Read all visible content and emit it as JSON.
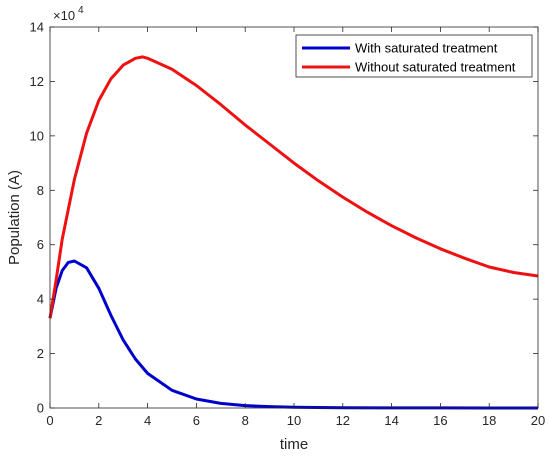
{
  "chart_data": {
    "type": "line",
    "xlabel": "time",
    "ylabel": "Population (A)",
    "xlim": [
      0,
      20
    ],
    "ylim": [
      0,
      140000
    ],
    "x_ticks": [
      0,
      2,
      4,
      6,
      8,
      10,
      12,
      14,
      16,
      18,
      20
    ],
    "x_tick_labels": [
      "0",
      "2",
      "4",
      "6",
      "8",
      "10",
      "12",
      "14",
      "16",
      "18",
      "20"
    ],
    "y_ticks": [
      0,
      20000,
      40000,
      60000,
      80000,
      100000,
      120000,
      140000
    ],
    "y_tick_labels": [
      "0",
      "2",
      "4",
      "6",
      "8",
      "10",
      "12",
      "14"
    ],
    "y_exponent_base": "×10",
    "y_exponent_power": "4",
    "grid": false,
    "legend_position": "top-right",
    "series": [
      {
        "name": "With saturated treatment",
        "color": "#0000cc",
        "x": [
          0,
          0.25,
          0.5,
          0.75,
          1,
          1.5,
          2,
          2.5,
          3,
          3.5,
          4,
          5,
          6,
          7,
          8,
          9,
          10,
          12,
          14,
          16,
          18,
          20
        ],
        "y": [
          33000,
          44000,
          50500,
          53500,
          54000,
          51500,
          44000,
          34000,
          25000,
          18000,
          12700,
          6500,
          3300,
          1700,
          900,
          500,
          300,
          100,
          40,
          20,
          10,
          5
        ]
      },
      {
        "name": "Without saturated treatment",
        "color": "#ee1111",
        "x": [
          0,
          0.25,
          0.5,
          0.75,
          1,
          1.5,
          2,
          2.5,
          3,
          3.5,
          3.8,
          4,
          5,
          6,
          7,
          8,
          9,
          10,
          11,
          12,
          13,
          14,
          15,
          16,
          17,
          18,
          19,
          20
        ],
        "y": [
          33000,
          47000,
          62000,
          73000,
          84000,
          101000,
          113000,
          121000,
          126000,
          128500,
          129000,
          128500,
          124500,
          118500,
          111500,
          104000,
          97000,
          90000,
          83500,
          77500,
          72000,
          67000,
          62500,
          58500,
          55000,
          51800,
          49800,
          48500
        ]
      }
    ]
  }
}
